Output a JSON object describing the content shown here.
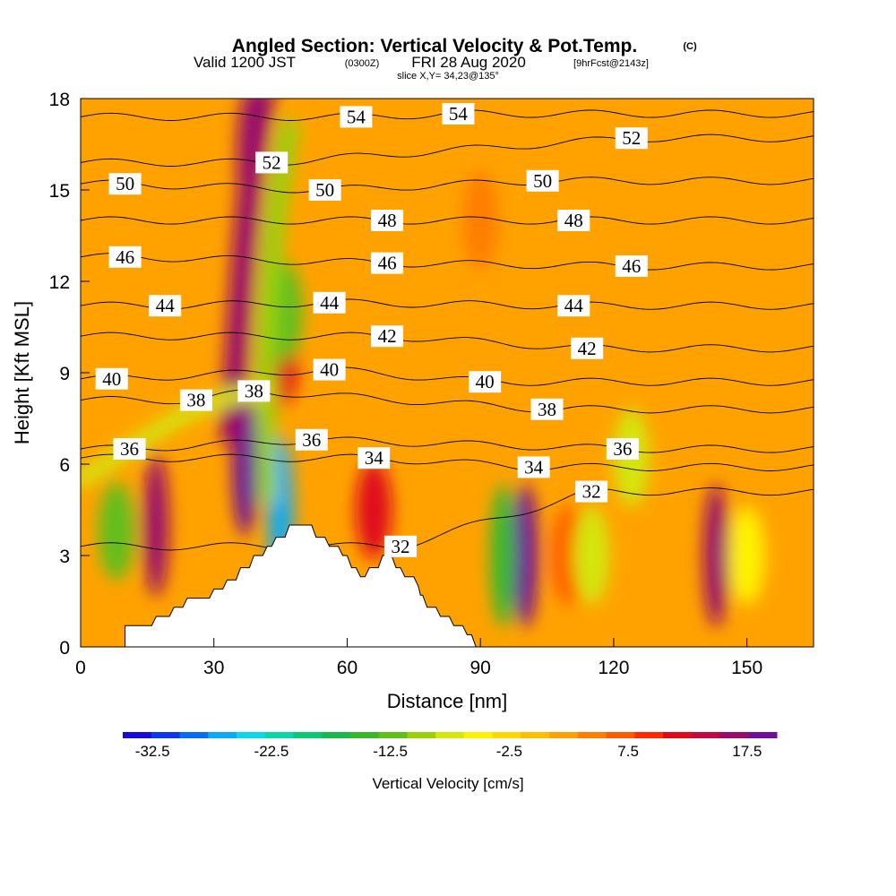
{
  "chart_data": {
    "type": "heatmap",
    "title": "Angled Section: Vertical Velocity & Pot.Temp.",
    "title_suffix": "(C)",
    "subtitle_prefix": "Valid 1200 JST",
    "subtitle_utc": "(0300Z)",
    "subtitle_date": "FRI 28 Aug 2020",
    "subtitle_forecast": "[9hrFcst@2143z]",
    "slice_info": "slice X,Y= 34,23@135°",
    "xlabel": "Distance [nm]",
    "ylabel": "Height [Kft MSL]",
    "xlim": [
      0,
      165
    ],
    "ylim": [
      0,
      18
    ],
    "x_ticks": [
      0,
      30,
      60,
      90,
      120,
      150
    ],
    "y_ticks": [
      0,
      3,
      6,
      9,
      12,
      15,
      18
    ],
    "colorbar": {
      "label": "Vertical Velocity [cm/s]",
      "tick_labels": [
        "-32.5",
        "-22.5",
        "-12.5",
        "-2.5",
        "7.5",
        "17.5"
      ],
      "tick_values": [
        -32.5,
        -22.5,
        -12.5,
        -2.5,
        7.5,
        17.5
      ],
      "range": [
        -35,
        20
      ],
      "colors": [
        "#1a0ad8",
        "#0a36ee",
        "#0a6cf4",
        "#0aaaf4",
        "#0ad8e8",
        "#0ad6a8",
        "#0ac876",
        "#1ab84a",
        "#38b82a",
        "#62be1a",
        "#98d00a",
        "#d4e60a",
        "#fff200",
        "#ffd800",
        "#ffbe00",
        "#ffa200",
        "#ff7e00",
        "#ff5a00",
        "#ff2a00",
        "#e00a1a",
        "#c00a40",
        "#9a0a6a",
        "#70109a"
      ]
    },
    "velocity_features": [
      {
        "x": 37,
        "y": 6,
        "value": 18
      },
      {
        "x": 38,
        "y": 16,
        "value": 17
      },
      {
        "x": 45,
        "y": 9.5,
        "value": 12
      },
      {
        "x": 17,
        "y": 4,
        "value": 16
      },
      {
        "x": 66,
        "y": 4.5,
        "value": 12
      },
      {
        "x": 100,
        "y": 3,
        "value": 20
      },
      {
        "x": 110,
        "y": 3,
        "value": 6
      },
      {
        "x": 143,
        "y": 3,
        "value": 17
      },
      {
        "x": 8,
        "y": 3.8,
        "value": -12
      },
      {
        "x": 45,
        "y": 4.5,
        "value": -27
      },
      {
        "x": 46,
        "y": 11,
        "value": -12
      },
      {
        "x": 95,
        "y": 3,
        "value": -15
      },
      {
        "x": 115,
        "y": 3,
        "value": -8
      },
      {
        "x": 124,
        "y": 6.2,
        "value": -8
      },
      {
        "x": 150,
        "y": 3,
        "value": -6
      },
      {
        "x": 90,
        "y": 14,
        "value": 4
      },
      {
        "x": 20,
        "y": 11,
        "value": 3
      },
      {
        "x": 110,
        "y": 13,
        "value": 3
      }
    ],
    "isentropes": [
      {
        "value": 32,
        "label_positions": [
          {
            "x": 115,
            "y": 5.1
          },
          {
            "x": 72,
            "y": 3.3
          }
        ]
      },
      {
        "value": 34,
        "label_positions": [
          {
            "x": 66,
            "y": 6.2
          },
          {
            "x": 102,
            "y": 5.9
          }
        ]
      },
      {
        "value": 36,
        "label_positions": [
          {
            "x": 11,
            "y": 6.5
          },
          {
            "x": 52,
            "y": 6.8
          },
          {
            "x": 122,
            "y": 6.5
          }
        ]
      },
      {
        "value": 38,
        "label_positions": [
          {
            "x": 26,
            "y": 8.1
          },
          {
            "x": 39,
            "y": 8.4
          },
          {
            "x": 105,
            "y": 7.8
          }
        ]
      },
      {
        "value": 40,
        "label_positions": [
          {
            "x": 7,
            "y": 8.8
          },
          {
            "x": 56,
            "y": 9.1
          },
          {
            "x": 91,
            "y": 8.7
          }
        ]
      },
      {
        "value": 42,
        "label_positions": [
          {
            "x": 69,
            "y": 10.2
          },
          {
            "x": 114,
            "y": 9.8
          }
        ]
      },
      {
        "value": 44,
        "label_positions": [
          {
            "x": 19,
            "y": 11.2
          },
          {
            "x": 56,
            "y": 11.3
          },
          {
            "x": 111,
            "y": 11.2
          }
        ]
      },
      {
        "value": 46,
        "label_positions": [
          {
            "x": 10,
            "y": 12.8
          },
          {
            "x": 69,
            "y": 12.6
          },
          {
            "x": 124,
            "y": 12.5
          }
        ]
      },
      {
        "value": 48,
        "label_positions": [
          {
            "x": 69,
            "y": 14.0
          },
          {
            "x": 111,
            "y": 14.0
          }
        ]
      },
      {
        "value": 50,
        "label_positions": [
          {
            "x": 10,
            "y": 15.2
          },
          {
            "x": 55,
            "y": 15.0
          },
          {
            "x": 104,
            "y": 15.3
          }
        ]
      },
      {
        "value": 52,
        "label_positions": [
          {
            "x": 43,
            "y": 15.9
          },
          {
            "x": 124,
            "y": 16.7
          }
        ]
      },
      {
        "value": 54,
        "label_positions": [
          {
            "x": 62,
            "y": 17.4
          },
          {
            "x": 85,
            "y": 17.5
          }
        ]
      }
    ],
    "terrain": [
      [
        10,
        0.7
      ],
      [
        16,
        0.7
      ],
      [
        17,
        1.0
      ],
      [
        20,
        1.0
      ],
      [
        21,
        1.3
      ],
      [
        23,
        1.3
      ],
      [
        24,
        1.6
      ],
      [
        29,
        1.6
      ],
      [
        30,
        1.9
      ],
      [
        32,
        1.9
      ],
      [
        33,
        2.2
      ],
      [
        35,
        2.2
      ],
      [
        36,
        2.6
      ],
      [
        38,
        2.6
      ],
      [
        39,
        3.0
      ],
      [
        41,
        3.0
      ],
      [
        42,
        3.3
      ],
      [
        43,
        3.3
      ],
      [
        44,
        3.6
      ],
      [
        46,
        3.6
      ],
      [
        47,
        4.0
      ],
      [
        52,
        4.0
      ],
      [
        53,
        3.6
      ],
      [
        55,
        3.6
      ],
      [
        56,
        3.3
      ],
      [
        58,
        3.3
      ],
      [
        59,
        3.0
      ],
      [
        60,
        3.0
      ],
      [
        61,
        2.6
      ],
      [
        62,
        2.6
      ],
      [
        63,
        2.3
      ],
      [
        64,
        2.3
      ],
      [
        65,
        2.6
      ],
      [
        67,
        2.6
      ],
      [
        68,
        3.0
      ],
      [
        70,
        3.0
      ],
      [
        71,
        2.6
      ],
      [
        72,
        2.6
      ],
      [
        73,
        2.3
      ],
      [
        75,
        2.3
      ],
      [
        76,
        2.0
      ],
      [
        76.5,
        1.7
      ],
      [
        77,
        1.7
      ],
      [
        78,
        1.3
      ],
      [
        80,
        1.3
      ],
      [
        81,
        1.0
      ],
      [
        83,
        1.0
      ],
      [
        84,
        0.7
      ],
      [
        86,
        0.7
      ],
      [
        87,
        0.4
      ],
      [
        88,
        0.4
      ],
      [
        89,
        0
      ]
    ]
  }
}
